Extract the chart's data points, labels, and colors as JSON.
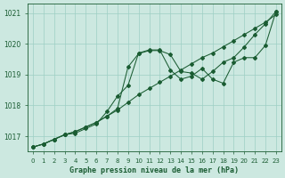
{
  "xlabel": "Graphe pression niveau de la mer (hPa)",
  "ylim": [
    1016.5,
    1021.3
  ],
  "xlim": [
    -0.5,
    23.5
  ],
  "yticks": [
    1017,
    1018,
    1019,
    1020,
    1021
  ],
  "xticks": [
    0,
    1,
    2,
    3,
    4,
    5,
    6,
    7,
    8,
    9,
    10,
    11,
    12,
    13,
    14,
    15,
    16,
    17,
    18,
    19,
    20,
    21,
    22,
    23
  ],
  "background_color": "#cce8e0",
  "grid_color": "#9ecfc4",
  "line_color": "#1a5c32",
  "line1_x": [
    0,
    1,
    2,
    3,
    4,
    5,
    6,
    7,
    8,
    9,
    10,
    11,
    12,
    13,
    14,
    15,
    16,
    17,
    18,
    19,
    20,
    21,
    22,
    23
  ],
  "line1_y": [
    1016.65,
    1016.75,
    1016.9,
    1017.05,
    1017.15,
    1017.3,
    1017.45,
    1017.65,
    1017.85,
    1018.1,
    1018.35,
    1018.55,
    1018.75,
    1018.95,
    1019.15,
    1019.35,
    1019.55,
    1019.7,
    1019.9,
    1020.1,
    1020.3,
    1020.5,
    1020.7,
    1020.95
  ],
  "line2_x": [
    0,
    1,
    2,
    3,
    4,
    5,
    6,
    7,
    8,
    9,
    10,
    11,
    12,
    13,
    14,
    15,
    16,
    17,
    18,
    19,
    20,
    21,
    22,
    23
  ],
  "line2_y": [
    1016.65,
    1016.75,
    1016.9,
    1017.05,
    1017.15,
    1017.3,
    1017.45,
    1017.65,
    1017.9,
    1019.25,
    1019.68,
    1019.78,
    1019.78,
    1019.65,
    1019.1,
    1019.05,
    1018.85,
    1019.1,
    1019.4,
    1019.55,
    1019.9,
    1020.3,
    1020.65,
    1021.05
  ],
  "line3_x": [
    0,
    1,
    2,
    3,
    4,
    5,
    6,
    7,
    8,
    9,
    10,
    11,
    12,
    13,
    14,
    15,
    16,
    17,
    18,
    19,
    20,
    21,
    22,
    23
  ],
  "line3_y": [
    1016.65,
    1016.75,
    1016.9,
    1017.05,
    1017.1,
    1017.25,
    1017.4,
    1017.8,
    1018.3,
    1018.65,
    1019.7,
    1019.8,
    1019.8,
    1019.15,
    1018.85,
    1018.95,
    1019.2,
    1018.85,
    1018.72,
    1019.4,
    1019.55,
    1019.55,
    1019.95,
    1021.05
  ],
  "xtick_fontsize": 5.0,
  "ytick_fontsize": 5.5,
  "xlabel_fontsize": 6.0
}
